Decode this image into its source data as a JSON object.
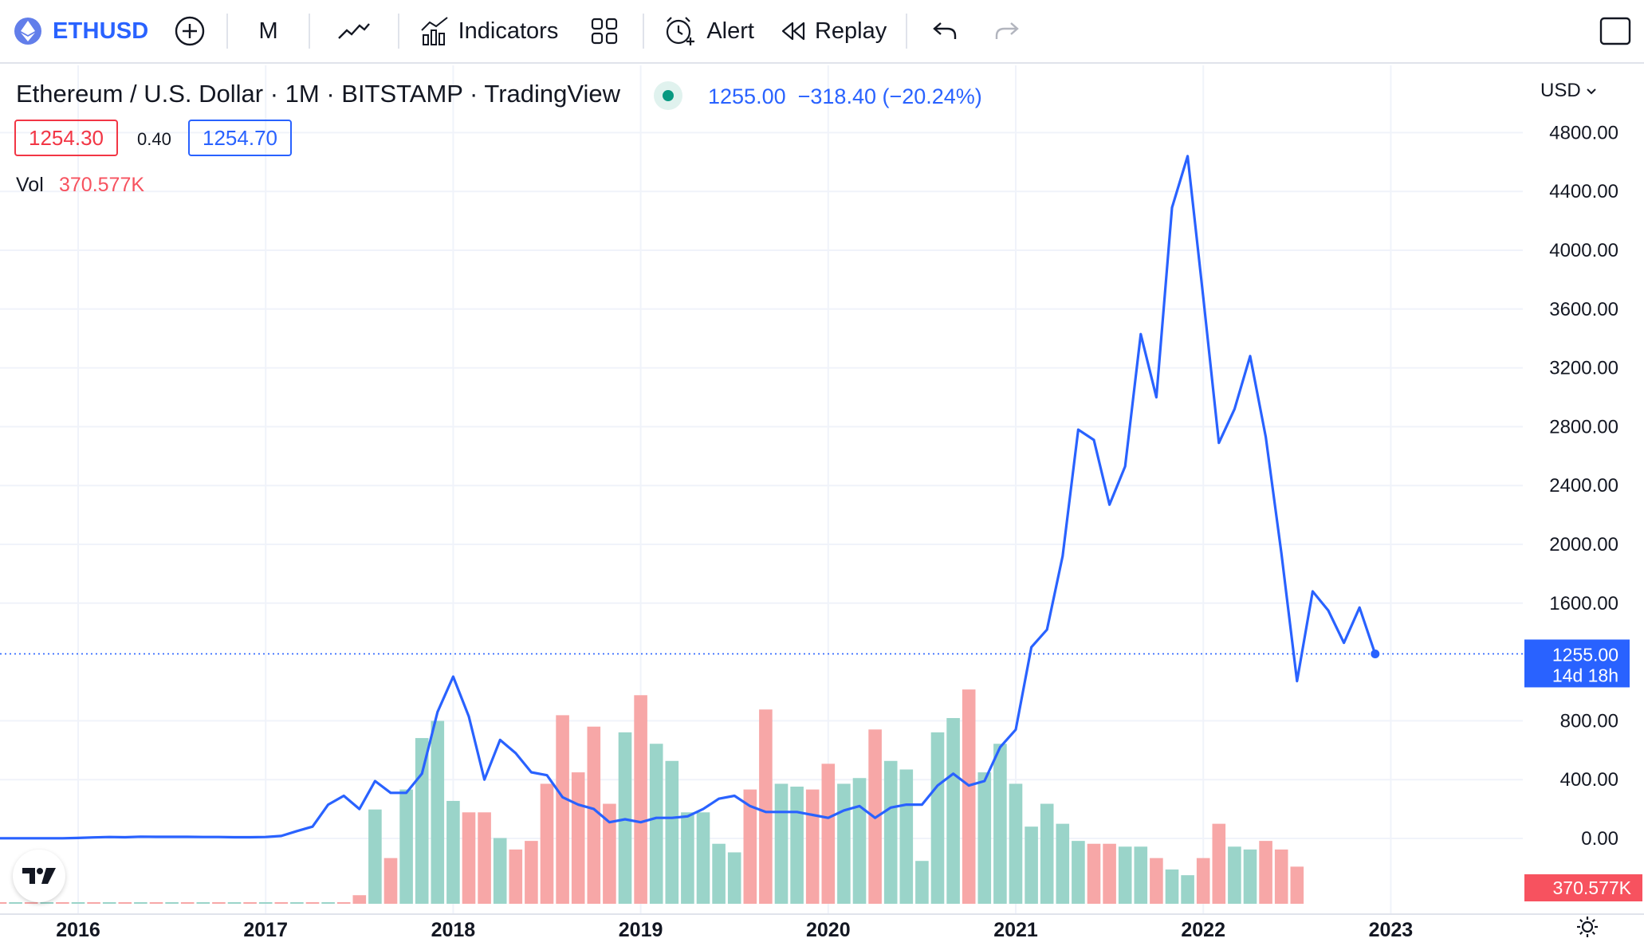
{
  "toolbar": {
    "symbol": "ETHUSD",
    "interval": "M",
    "indicators_label": "Indicators",
    "alert_label": "Alert",
    "replay_label": "Replay",
    "icons": [
      "ethereum-icon",
      "add-symbol-icon",
      "chart-type-line-icon",
      "indicators-icon",
      "layouts-icon",
      "alert-icon",
      "replay-icon",
      "undo-icon",
      "redo-icon",
      "fullscreen-icon"
    ]
  },
  "legend": {
    "title": "Ethereum / U.S. Dollar · 1M · BITSTAMP · TradingView",
    "price": "1255.00",
    "change": "−318.40 (−20.24%)",
    "bid": "1254.30",
    "spread": "0.40",
    "ask": "1254.70",
    "vol_label": "Vol",
    "vol_value": "370.577K"
  },
  "price_scale": {
    "currency": "USD",
    "last_price_label": "1255.00",
    "countdown": "14d 18h",
    "volume_badge": "370.577K"
  },
  "colors": {
    "line": "#2962ff",
    "vol_up": "#9ad4c9",
    "vol_down": "#f7a7a7",
    "vol_badge": "#f7525f",
    "price_badge": "#2962ff"
  },
  "chart_data": {
    "type": "line",
    "title": "Ethereum / U.S. Dollar · 1M · BITSTAMP · TradingView",
    "ylim": [
      0,
      4800
    ],
    "yticks": [
      "4800.00",
      "4400.00",
      "4000.00",
      "3600.00",
      "3200.00",
      "2800.00",
      "2400.00",
      "2000.00",
      "1600.00",
      "800.00",
      "400.00",
      "0.00"
    ],
    "xticks": [
      "2016",
      "2017",
      "2018",
      "2019",
      "2020",
      "2021",
      "2022",
      "2023"
    ],
    "x_start": "2015-08",
    "series": [
      {
        "values": [
          1,
          1,
          1,
          1,
          1,
          3,
          7,
          10,
          8,
          12,
          11,
          11,
          11,
          10,
          10,
          8,
          8,
          10,
          17,
          50,
          80,
          230,
          290,
          200,
          390,
          310,
          310,
          440,
          860,
          1100,
          830,
          400,
          670,
          580,
          450,
          430,
          280,
          230,
          200,
          110,
          130,
          110,
          140,
          140,
          150,
          200,
          270,
          290,
          220,
          180,
          180,
          180,
          160,
          140,
          190,
          220,
          140,
          210,
          230,
          230,
          360,
          440,
          360,
          390,
          620,
          740,
          1300,
          1420,
          1920,
          2780,
          2710,
          2270,
          2530,
          3430,
          3000,
          4290,
          4640,
          3680,
          2690,
          2920,
          3280,
          2730,
          1940,
          1070,
          1680,
          1550,
          1330,
          1570,
          1255
        ]
      }
    ],
    "volume": {
      "start_index": 23,
      "values": [
        15,
        165,
        80,
        200,
        290,
        320,
        180,
        160,
        160,
        115,
        95,
        110,
        210,
        330,
        230,
        310,
        175,
        300,
        365,
        280,
        250,
        160,
        160,
        105,
        90,
        200,
        340,
        210,
        205,
        200,
        245,
        210,
        220,
        305,
        250,
        235,
        75,
        300,
        325,
        375,
        230,
        280,
        210,
        135,
        175,
        140,
        110,
        105,
        105,
        100,
        100,
        80,
        60,
        50,
        80,
        140,
        100,
        95,
        110,
        95,
        65
      ]
    }
  }
}
